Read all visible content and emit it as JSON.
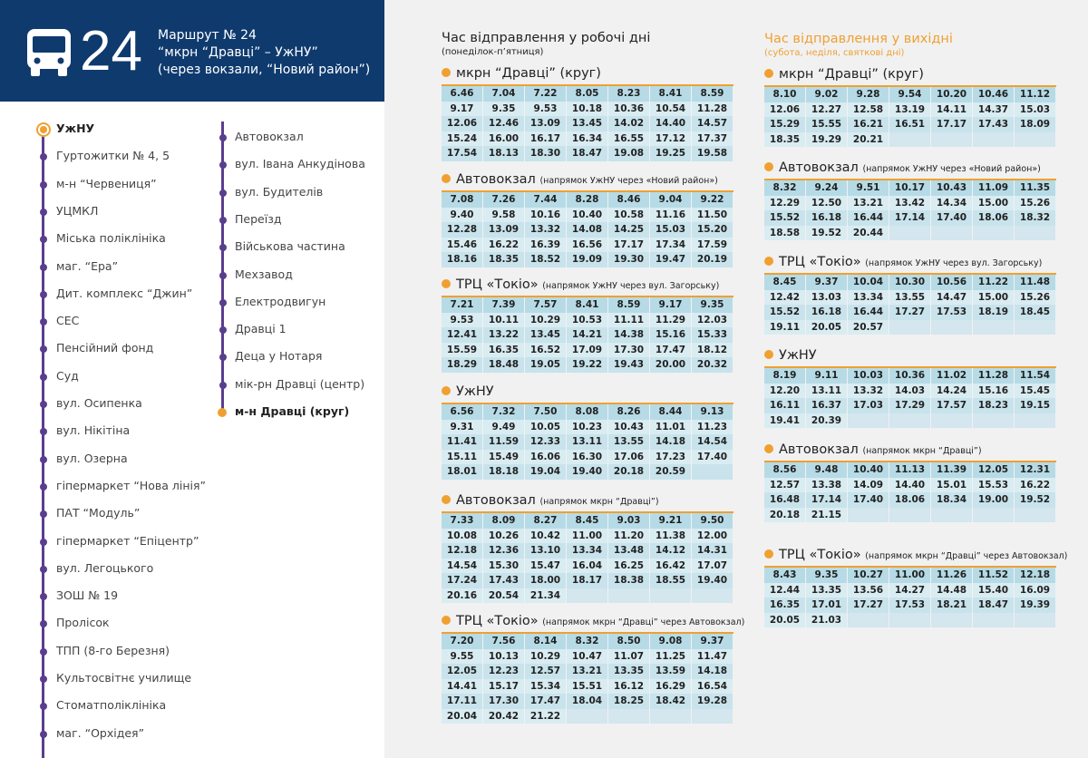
{
  "header": {
    "number": "24",
    "line1": "Маршрут № 24",
    "line2": "“мкрн “Дравці” – УжНУ”",
    "line3": "(через вокзали, “Новий район”)"
  },
  "stops": {
    "column1": [
      "УжНУ",
      "Гуртожитки № 4, 5",
      "м-н “Червениця”",
      "УЦМКЛ",
      "Міська поліклініка",
      "маг. “Ера”",
      "Дит. комплекс “Джин”",
      "СЕС",
      "Пенсійний фонд",
      "Суд",
      "вул. Осипенка",
      "вул. Нікітіна",
      "вул. Озерна",
      "гіпермаркет “Нова лінія”",
      "ПАТ “Модуль”",
      "гіпермаркет “Епіцентр”",
      "вул. Легоцького",
      "ЗОШ № 19",
      "Пролісок",
      "ТПП (8-го Березня)",
      "Культосвітнє училище",
      "Стоматполіклініка",
      "маг. “Орхідея”"
    ],
    "column2": [
      "Автовокзал",
      "вул. Івана Анкудінова",
      "вул. Будителів",
      "Переїзд",
      "Військова частина",
      "Мехзавод",
      "Електродвигун",
      "Дравці 1",
      "Деца у Нотаря",
      "мік-рн Дравці (центр)",
      "м-н Дравці (круг)"
    ]
  },
  "weekdays": {
    "title": "Час відправлення у робочі дні",
    "subtitle": "(понеділок-п’ятниця)",
    "blocks": [
      {
        "stop": "мкрн “Дравці” (круг)",
        "rows": [
          [
            "6.46",
            "7.04",
            "7.22",
            "8.05",
            "8.23",
            "8.41",
            "8.59"
          ],
          [
            "9.17",
            "9.35",
            "9.53",
            "10.18",
            "10.36",
            "10.54",
            "11.28"
          ],
          [
            "12.06",
            "12.46",
            "13.09",
            "13.45",
            "14.02",
            "14.40",
            "14.57"
          ],
          [
            "15.24",
            "16.00",
            "16.17",
            "16.34",
            "16.55",
            "17.12",
            "17.37"
          ],
          [
            "17.54",
            "18.13",
            "18.30",
            "18.47",
            "19.08",
            "19.25",
            "19.58"
          ]
        ]
      },
      {
        "stop": "Автовокзал",
        "note": "(напрямок УжНУ через «Новий район»)",
        "rows": [
          [
            "7.08",
            "7.26",
            "7.44",
            "8.28",
            "8.46",
            "9.04",
            "9.22"
          ],
          [
            "9.40",
            "9.58",
            "10.16",
            "10.40",
            "10.58",
            "11.16",
            "11.50"
          ],
          [
            "12.28",
            "13.09",
            "13.32",
            "14.08",
            "14.25",
            "15.03",
            "15.20"
          ],
          [
            "15.46",
            "16.22",
            "16.39",
            "16.56",
            "17.17",
            "17.34",
            "17.59"
          ],
          [
            "18.16",
            "18.35",
            "18.52",
            "19.09",
            "19.30",
            "19.47",
            "20.19"
          ]
        ]
      },
      {
        "stop": "ТРЦ «Токіо»",
        "note": "(напрямок УжНУ через вул. Загорську)",
        "rows": [
          [
            "7.21",
            "7.39",
            "7.57",
            "8.41",
            "8.59",
            "9.17",
            "9.35"
          ],
          [
            "9.53",
            "10.11",
            "10.29",
            "10.53",
            "11.11",
            "11.29",
            "12.03"
          ],
          [
            "12.41",
            "13.22",
            "13.45",
            "14.21",
            "14.38",
            "15.16",
            "15.33"
          ],
          [
            "15.59",
            "16.35",
            "16.52",
            "17.09",
            "17.30",
            "17.47",
            "18.12"
          ],
          [
            "18.29",
            "18.48",
            "19.05",
            "19.22",
            "19.43",
            "20.00",
            "20.32"
          ]
        ]
      },
      {
        "stop": "УжНУ",
        "rows": [
          [
            "6.56",
            "7.32",
            "7.50",
            "8.08",
            "8.26",
            "8.44",
            "9.13"
          ],
          [
            "9.31",
            "9.49",
            "10.05",
            "10.23",
            "10.43",
            "11.01",
            "11.23"
          ],
          [
            "11.41",
            "11.59",
            "12.33",
            "13.11",
            "13.55",
            "14.18",
            "14.54"
          ],
          [
            "15.11",
            "15.49",
            "16.06",
            "16.30",
            "17.06",
            "17.23",
            "17.40"
          ],
          [
            "18.01",
            "18.18",
            "19.04",
            "19.40",
            "20.18",
            "20.59"
          ]
        ]
      },
      {
        "stop": "Автовокзал",
        "note": "(напрямок мкрн “Дравці”)",
        "rows": [
          [
            "7.33",
            "8.09",
            "8.27",
            "8.45",
            "9.03",
            "9.21",
            "9.50"
          ],
          [
            "10.08",
            "10.26",
            "10.42",
            "11.00",
            "11.20",
            "11.38",
            "12.00"
          ],
          [
            "12.18",
            "12.36",
            "13.10",
            "13.34",
            "13.48",
            "14.12",
            "14.31"
          ],
          [
            "14.54",
            "15.30",
            "15.47",
            "16.04",
            "16.25",
            "16.42",
            "17.07"
          ],
          [
            "17.24",
            "17.43",
            "18.00",
            "18.17",
            "18.38",
            "18.55",
            "19.40"
          ],
          [
            "20.16",
            "20.54",
            "21.34"
          ]
        ]
      },
      {
        "stop": "ТРЦ «Токіо»",
        "note": "(напрямок мкрн “Дравці” через Автовокзал)",
        "rows": [
          [
            "7.20",
            "7.56",
            "8.14",
            "8.32",
            "8.50",
            "9.08",
            "9.37"
          ],
          [
            "9.55",
            "10.13",
            "10.29",
            "10.47",
            "11.07",
            "11.25",
            "11.47"
          ],
          [
            "12.05",
            "12.23",
            "12.57",
            "13.21",
            "13.35",
            "13.59",
            "14.18"
          ],
          [
            "14.41",
            "15.17",
            "15.34",
            "15.51",
            "16.12",
            "16.29",
            "16.54"
          ],
          [
            "17.11",
            "17.30",
            "17.47",
            "18.04",
            "18.25",
            "18.42",
            "19.28"
          ],
          [
            "20.04",
            "20.42",
            "21.22"
          ]
        ]
      }
    ]
  },
  "weekends": {
    "title": "Час відправлення у вихідні",
    "subtitle": "(субота, неділя, святкові дні)",
    "blocks": [
      {
        "stop": "мкрн “Дравці” (круг)",
        "rows": [
          [
            "8.10",
            "9.02",
            "9.28",
            "9.54",
            "10.20",
            "10.46",
            "11.12"
          ],
          [
            "12.06",
            "12.27",
            "12.58",
            "13.19",
            "14.11",
            "14.37",
            "15.03"
          ],
          [
            "15.29",
            "15.55",
            "16.21",
            "16.51",
            "17.17",
            "17.43",
            "18.09"
          ],
          [
            "18.35",
            "19.29",
            "20.21"
          ]
        ]
      },
      {
        "stop": "Автовокзал",
        "note": "(напрямок УжНУ через «Новий район»)",
        "rows": [
          [
            "8.32",
            "9.24",
            "9.51",
            "10.17",
            "10.43",
            "11.09",
            "11.35"
          ],
          [
            "12.29",
            "12.50",
            "13.21",
            "13.42",
            "14.34",
            "15.00",
            "15.26"
          ],
          [
            "15.52",
            "16.18",
            "16.44",
            "17.14",
            "17.40",
            "18.06",
            "18.32"
          ],
          [
            "18.58",
            "19.52",
            "20.44"
          ]
        ]
      },
      {
        "stop": "ТРЦ «Токіо»",
        "note": "(напрямок УжНУ через вул. Загорську)",
        "rows": [
          [
            "8.45",
            "9.37",
            "10.04",
            "10.30",
            "10.56",
            "11.22",
            "11.48"
          ],
          [
            "12.42",
            "13.03",
            "13.34",
            "13.55",
            "14.47",
            "15.00",
            "15.26"
          ],
          [
            "15.52",
            "16.18",
            "16.44",
            "17.27",
            "17.53",
            "18.19",
            "18.45"
          ],
          [
            "19.11",
            "20.05",
            "20.57"
          ]
        ]
      },
      {
        "stop": "УжНУ",
        "rows": [
          [
            "8.19",
            "9.11",
            "10.03",
            "10.36",
            "11.02",
            "11.28",
            "11.54"
          ],
          [
            "12.20",
            "13.11",
            "13.32",
            "14.03",
            "14.24",
            "15.16",
            "15.45"
          ],
          [
            "16.11",
            "16.37",
            "17.03",
            "17.29",
            "17.57",
            "18.23",
            "19.15"
          ],
          [
            "19.41",
            "20.39"
          ]
        ]
      },
      {
        "stop": "Автовокзал",
        "note": "(напрямок мкрн “Дравці”)",
        "rows": [
          [
            "8.56",
            "9.48",
            "10.40",
            "11.13",
            "11.39",
            "12.05",
            "12.31"
          ],
          [
            "12.57",
            "13.38",
            "14.09",
            "14.40",
            "15.01",
            "15.53",
            "16.22"
          ],
          [
            "16.48",
            "17.14",
            "17.40",
            "18.06",
            "18.34",
            "19.00",
            "19.52"
          ],
          [
            "20.18",
            "21.15"
          ]
        ]
      },
      {
        "stop": "ТРЦ «Токіо»",
        "note": "(напрямок мкрн “Дравці” через Автовокзал)",
        "rows": [
          [
            "8.43",
            "9.35",
            "10.27",
            "11.00",
            "11.26",
            "11.52",
            "12.18"
          ],
          [
            "12.44",
            "13.35",
            "13.56",
            "14.27",
            "14.48",
            "15.40",
            "16.09"
          ],
          [
            "16.35",
            "17.01",
            "17.27",
            "17.53",
            "18.21",
            "18.47",
            "19.39"
          ],
          [
            "20.05",
            "21.03"
          ]
        ]
      }
    ]
  }
}
